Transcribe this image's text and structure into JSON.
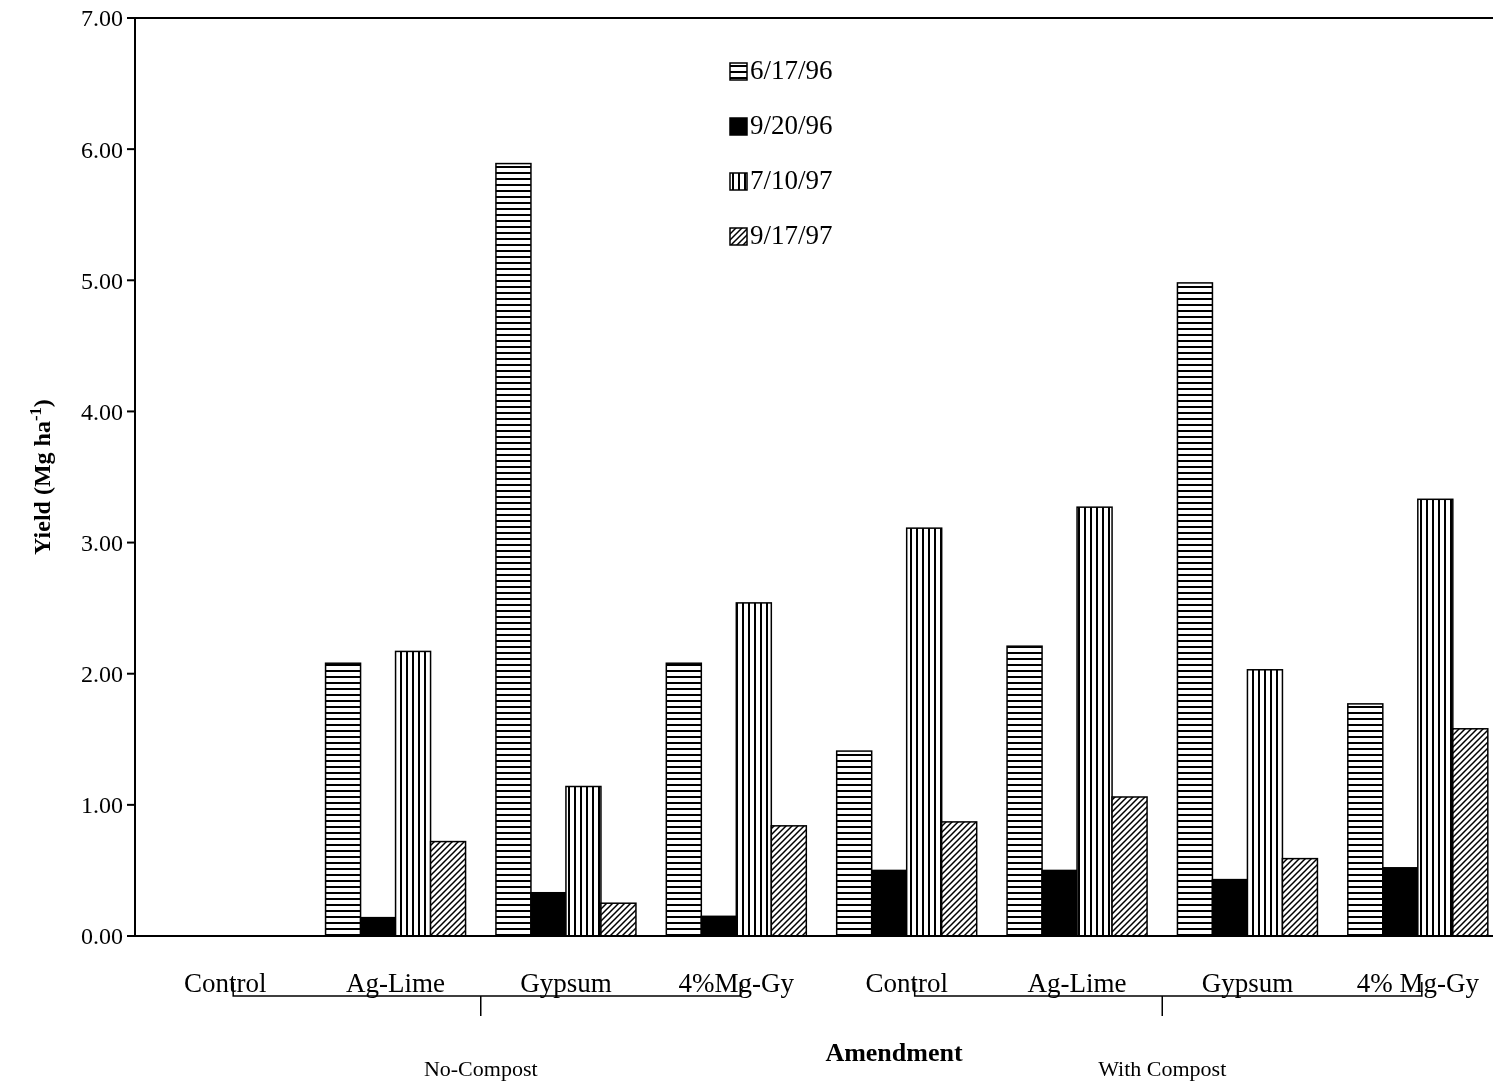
{
  "chart_data": {
    "type": "bar",
    "xlabel": "Amendment",
    "ylabel": "Yield (Mg ha$^{-1}$)",
    "categories": [
      "Control",
      "Ag-Lime",
      "Gypsum",
      "4%Mg-Gy",
      "Control",
      "Ag-Lime",
      "Gypsum",
      "4% Mg-Gy"
    ],
    "series": [
      {
        "name": "6/17/96",
        "color": "#000000",
        "values": [
          0,
          2.08,
          5.89,
          2.08,
          1.41,
          2.21,
          4.98,
          1.77
        ]
      },
      {
        "name": "9/20/96",
        "color": "#000000",
        "values": [
          0,
          0.14,
          0.33,
          0.15,
          0.5,
          0.5,
          0.43,
          0.52
        ]
      },
      {
        "name": "7/10/97",
        "color": "#000000",
        "values": [
          0,
          2.17,
          1.14,
          2.54,
          3.11,
          3.27,
          2.03,
          3.33
        ]
      },
      {
        "name": "9/17/97",
        "color": "#000000",
        "values": [
          0,
          0.72,
          0.25,
          0.84,
          0.87,
          1.06,
          0.59,
          1.58
        ]
      }
    ],
    "ylim": [
      0,
      7
    ],
    "yticks": [
      {
        "value": 0,
        "label": "0.00"
      },
      {
        "value": 1,
        "label": "1.00"
      },
      {
        "value": 2,
        "label": "2.00"
      },
      {
        "value": 3,
        "label": "3.00"
      },
      {
        "value": 4,
        "label": "4.00"
      },
      {
        "value": 5,
        "label": "5.00"
      },
      {
        "value": 6,
        "label": "6.00"
      },
      {
        "value": 7,
        "label": "7.00"
      }
    ],
    "grid": false,
    "legend": "top",
    "annotations": [
      "No-Compost",
      "With Compost"
    ]
  }
}
